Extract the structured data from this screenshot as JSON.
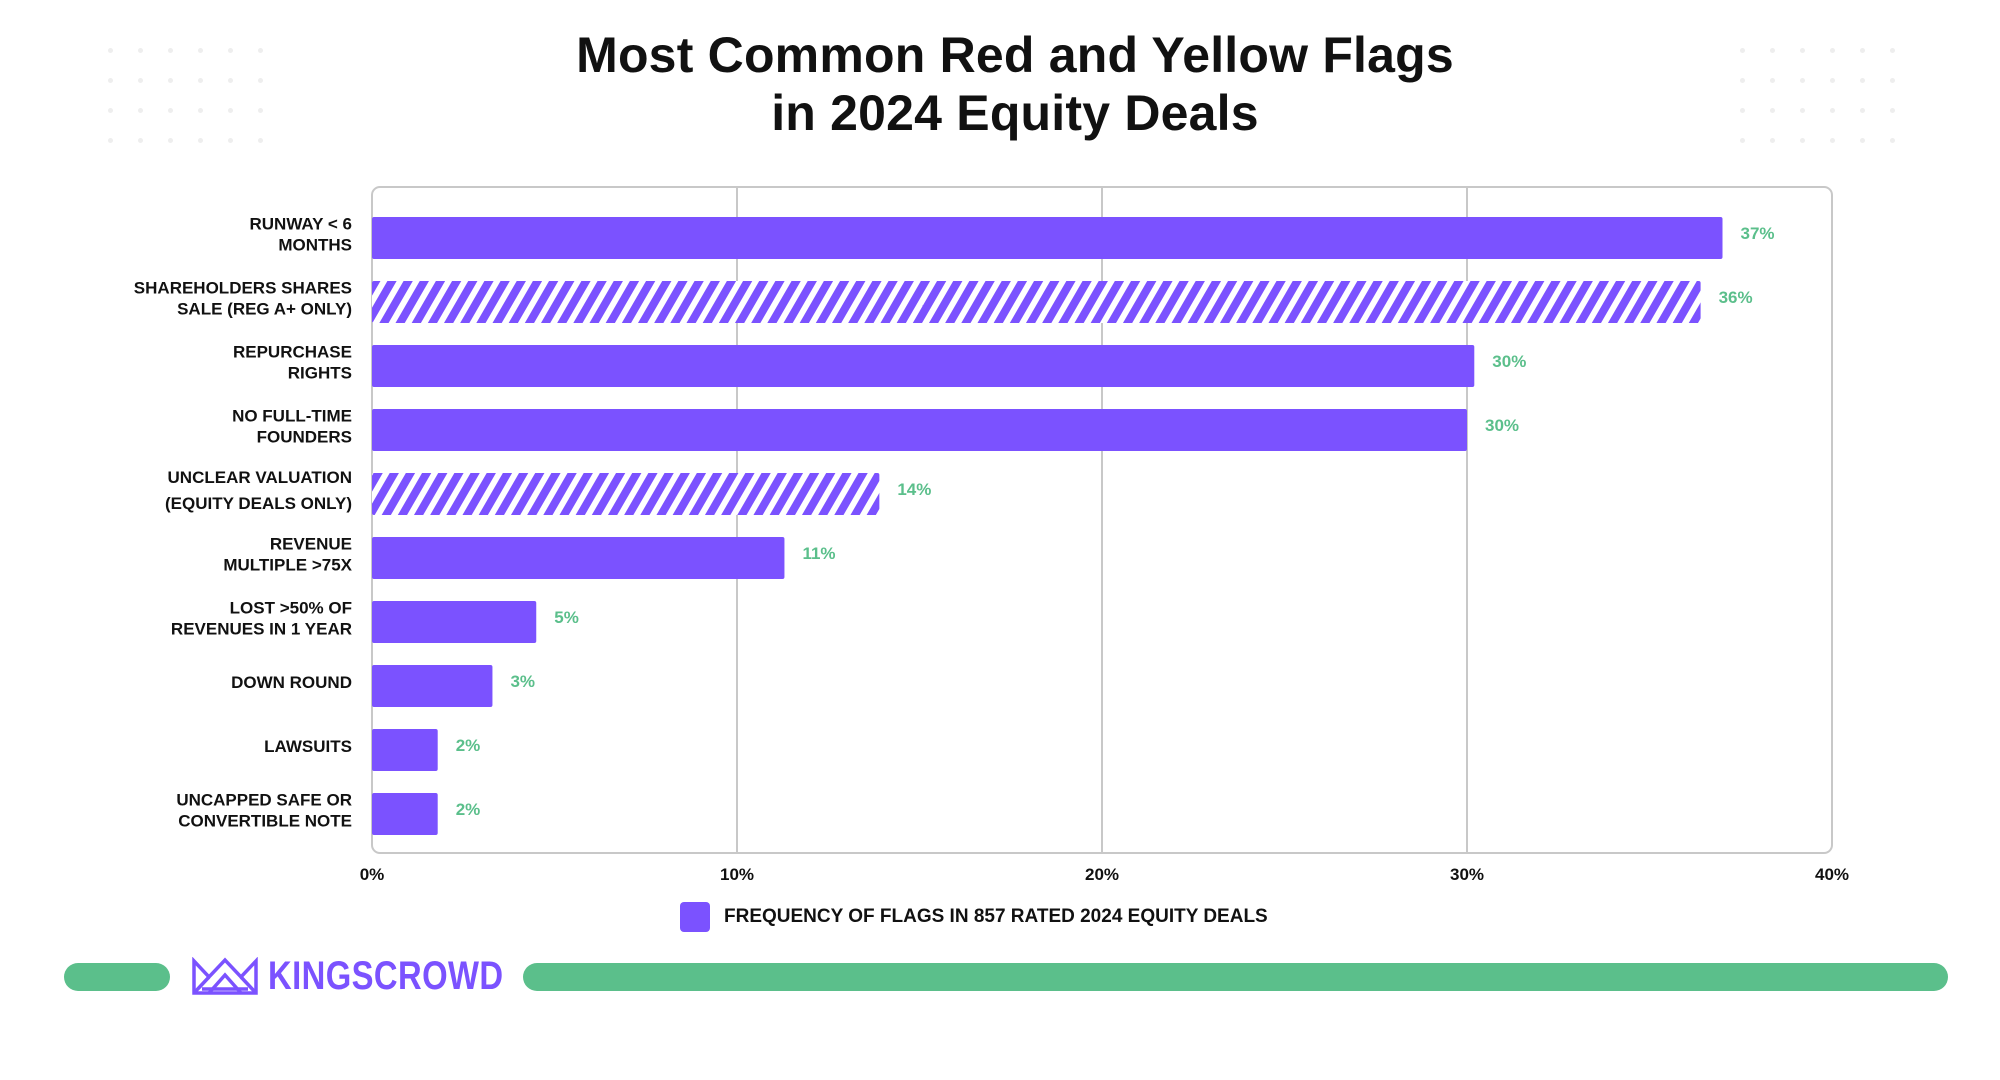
{
  "title_lines": [
    "Most Common Red and Yellow Flags",
    "in 2024 Equity Deals"
  ],
  "legend_label": "FREQUENCY OF FLAGS IN 857 RATED 2024 EQUITY DEALS",
  "brand": "KINGSCROWD",
  "colors": {
    "bar": "#7b52ff",
    "value_label": "#5bbf8b",
    "footer_bar": "#5bbf8b",
    "grid": "#c8c8c8"
  },
  "chart_data": {
    "type": "bar",
    "orientation": "horizontal",
    "series": [
      {
        "name": "FREQUENCY OF FLAGS IN 857 RATED 2024 EQUITY DEALS",
        "categories": [
          [
            "RUNWAY < 6",
            "MONTHS"
          ],
          [
            "SHAREHOLDERS SHARES",
            "SALE (REG A+ ONLY)"
          ],
          [
            "REPURCHASE",
            "RIGHTS"
          ],
          [
            "NO FULL-TIME",
            "FOUNDERS"
          ],
          [
            "UNCLEAR VALUATION",
            "(EQUITY DEALS ONLY)"
          ],
          [
            "REVENUE",
            "MULTIPLE >75X"
          ],
          [
            "LOST >50% OF",
            "REVENUES IN 1 YEAR"
          ],
          [
            "DOWN ROUND"
          ],
          [
            "LAWSUITS"
          ],
          [
            "UNCAPPED SAFE OR",
            "CONVERTIBLE NOTE"
          ]
        ],
        "values": [
          37,
          36.4,
          30.2,
          30,
          13.9,
          11.3,
          4.5,
          3.3,
          1.8,
          1.8
        ],
        "value_labels": [
          "37%",
          "36%",
          "30%",
          "30%",
          "14%",
          "11%",
          "5%",
          "3%",
          "2%",
          "2%"
        ],
        "hatched": [
          false,
          true,
          false,
          false,
          true,
          false,
          false,
          false,
          false,
          false
        ]
      }
    ],
    "xlim": [
      0,
      40
    ],
    "x_ticks": [
      0,
      10,
      20,
      30,
      40
    ],
    "x_tick_labels": [
      "0%",
      "10%",
      "20%",
      "30%",
      "40%"
    ],
    "grid": "vertical",
    "legend_position": "bottom"
  }
}
